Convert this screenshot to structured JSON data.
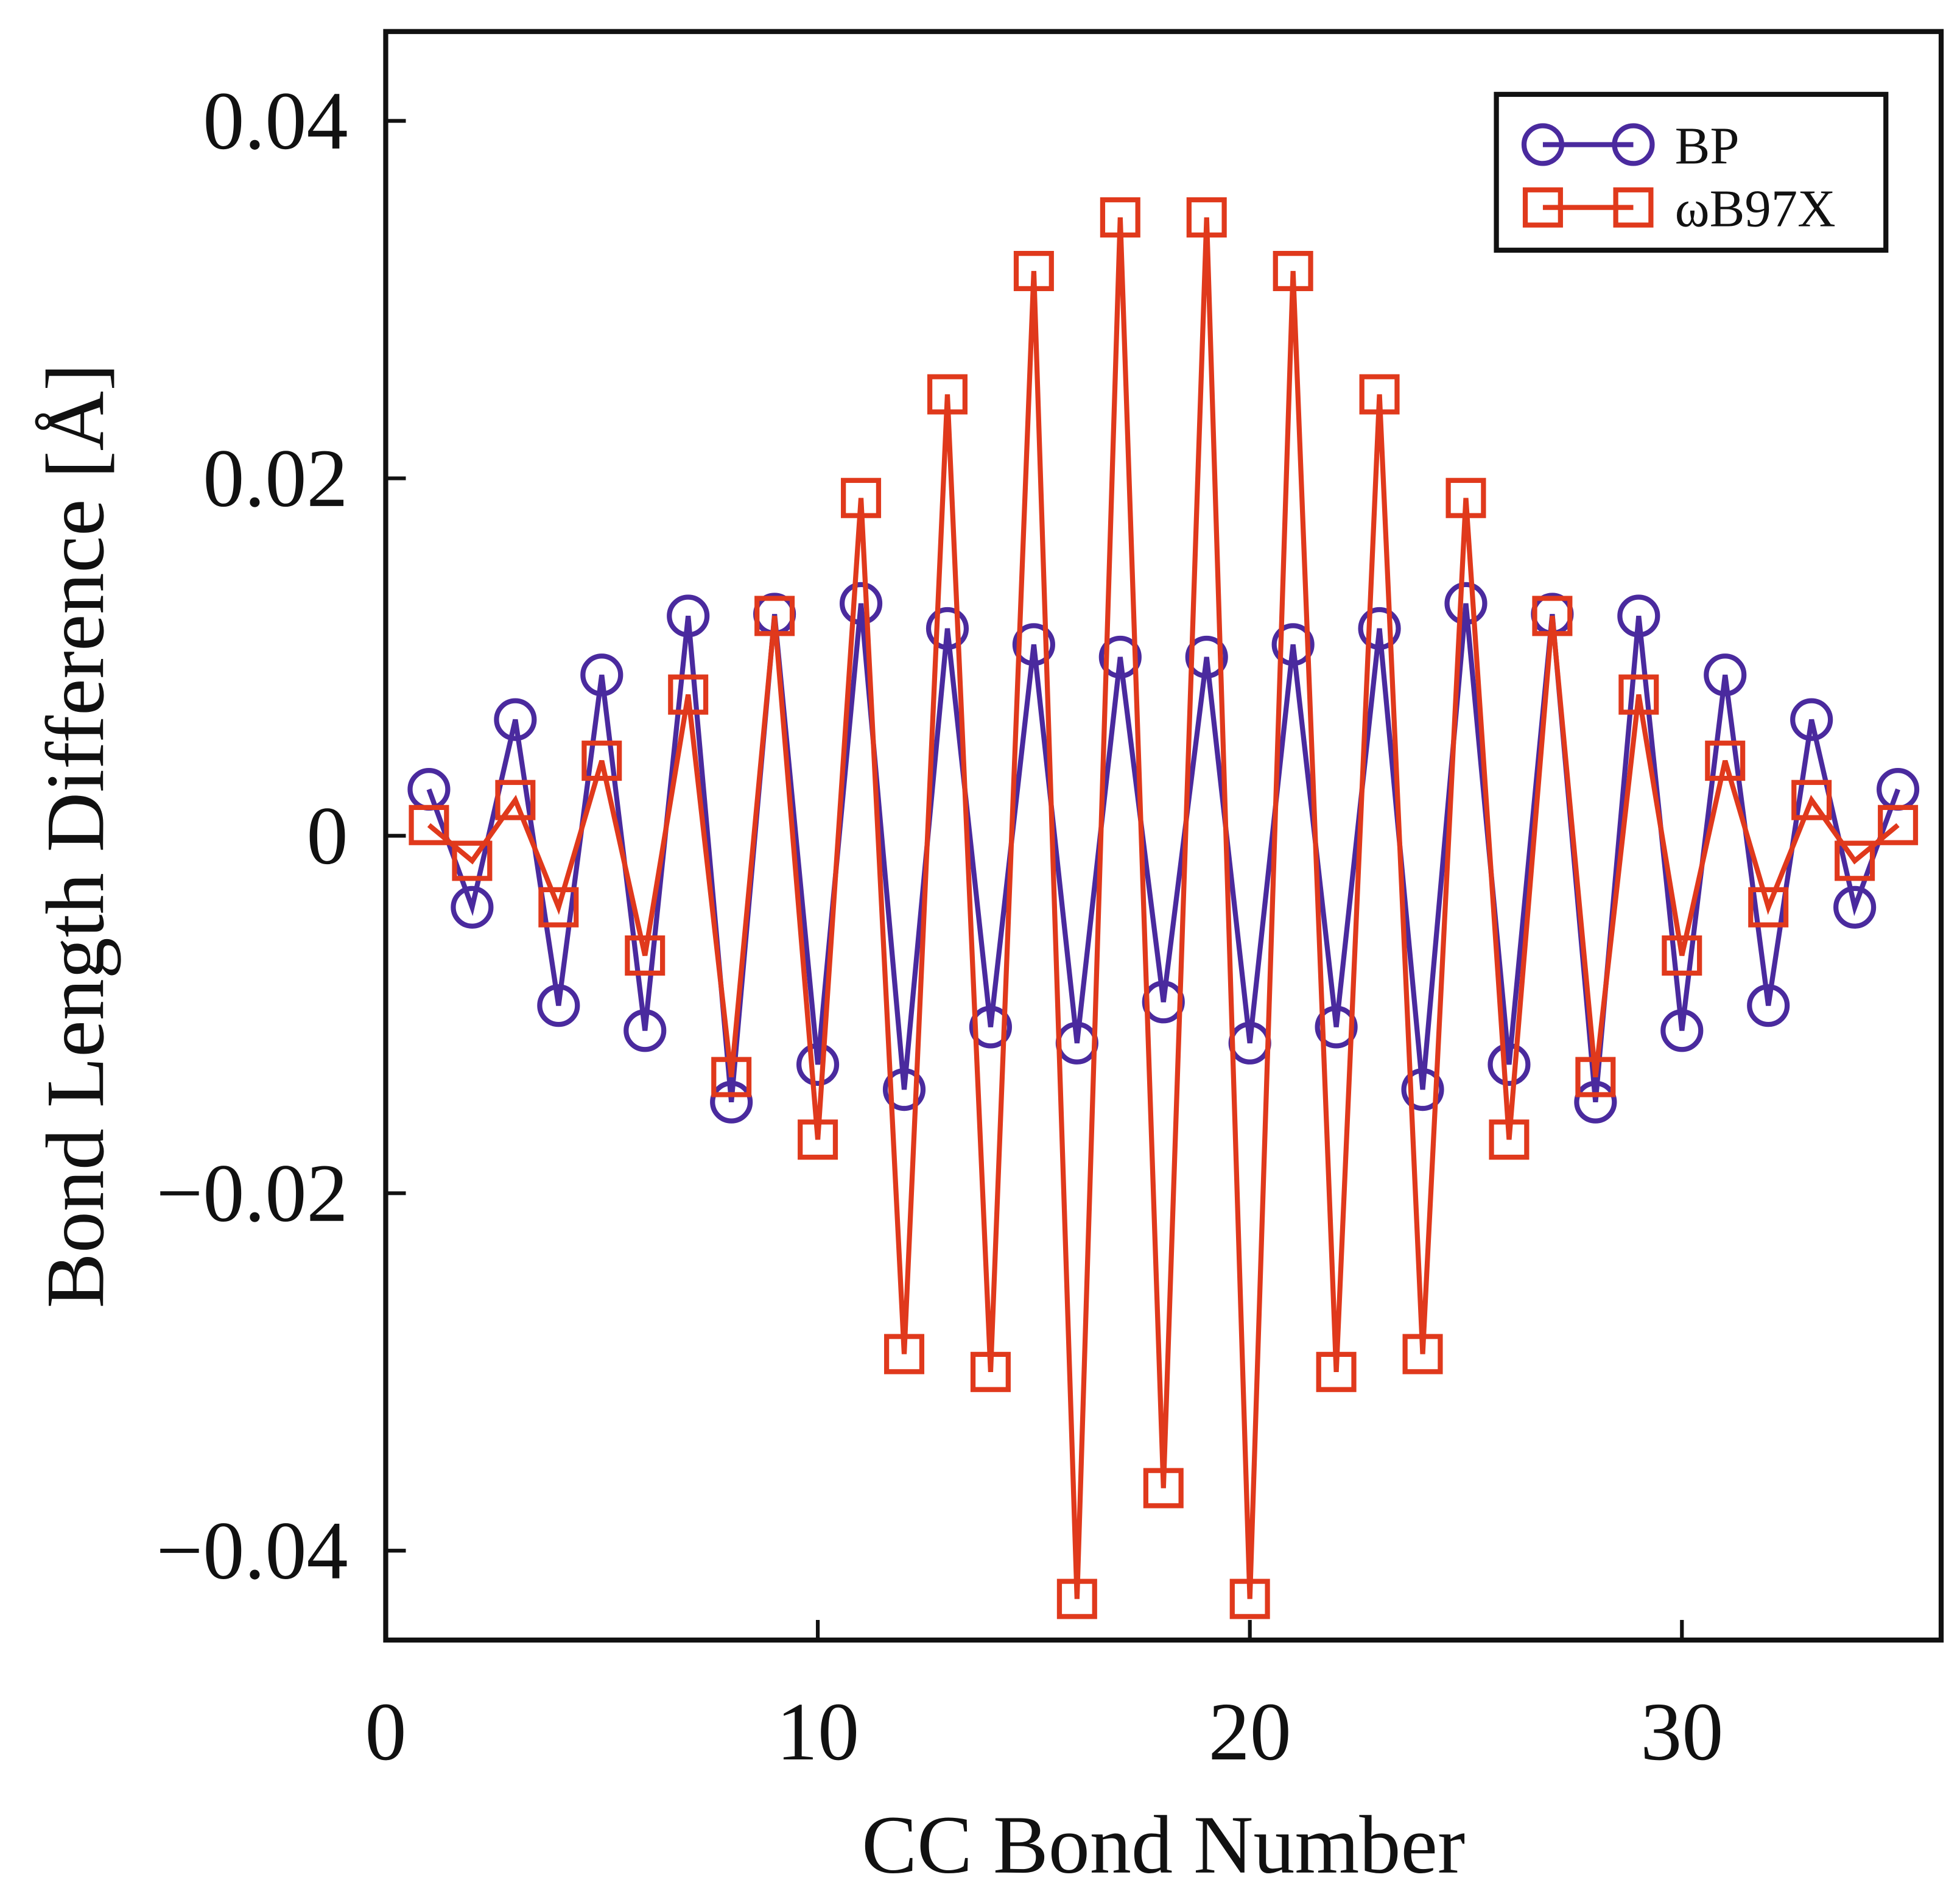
{
  "chart_data": {
    "type": "line",
    "title": "",
    "xlabel": "CC Bond Number",
    "ylabel": "Bond Length Difference [Å]",
    "xlim": [
      0,
      36
    ],
    "ylim": [
      -0.045,
      0.045
    ],
    "xticks": [
      0,
      10,
      20,
      30
    ],
    "xtick_labels": [
      "0",
      "10",
      "20",
      "30"
    ],
    "yticks": [
      0.04,
      0.02,
      0,
      -0.02,
      -0.04
    ],
    "ytick_labels": [
      "0.04",
      "0.02",
      "0",
      "−0.02",
      "−0.04"
    ],
    "grid": false,
    "legend_position": "top-right",
    "x": [
      1,
      2,
      3,
      4,
      5,
      6,
      7,
      8,
      9,
      10,
      11,
      12,
      13,
      14,
      15,
      16,
      17,
      18,
      19,
      20,
      21,
      22,
      23,
      24,
      25,
      26,
      27,
      28,
      29,
      30,
      31,
      32,
      33,
      34,
      35
    ],
    "series": [
      {
        "name": "BP",
        "color": "#4a2a9e",
        "marker": "circle",
        "values": [
          0.0026,
          -0.004,
          0.0065,
          -0.0095,
          0.009,
          -0.0109,
          0.0123,
          -0.0149,
          0.0124,
          -0.0128,
          0.013,
          -0.0142,
          0.0116,
          -0.0107,
          0.0107,
          -0.0116,
          0.01,
          -0.0093,
          0.01,
          -0.0116,
          0.0107,
          -0.0107,
          0.0116,
          -0.0142,
          0.013,
          -0.0128,
          0.0124,
          -0.0149,
          0.0123,
          -0.0109,
          0.009,
          -0.0095,
          0.0065,
          -0.004,
          0.0026
        ]
      },
      {
        "name": "ωB97X",
        "color": "#e0391c",
        "marker": "square",
        "values": [
          0.0006,
          -0.0014,
          0.002,
          -0.004,
          0.0042,
          -0.0067,
          0.0079,
          -0.0135,
          0.0123,
          -0.017,
          0.0189,
          -0.029,
          0.0247,
          -0.03,
          0.0316,
          -0.0427,
          0.0346,
          -0.0365,
          0.0346,
          -0.0427,
          0.0316,
          -0.03,
          0.0247,
          -0.029,
          0.0189,
          -0.017,
          0.0123,
          -0.0135,
          0.0079,
          -0.0067,
          0.0042,
          -0.004,
          0.002,
          -0.0014,
          0.0006
        ]
      }
    ]
  }
}
